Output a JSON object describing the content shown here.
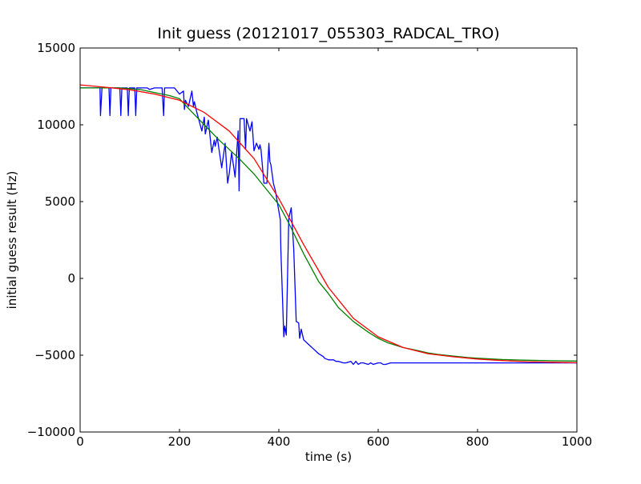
{
  "chart_data": {
    "type": "line",
    "title": "Init guess (20121017_055303_RADCAL_TRO)",
    "xlabel": "time (s)",
    "ylabel": "initial guess result (Hz)",
    "xlim": [
      0,
      1000
    ],
    "ylim": [
      -10000,
      15000
    ],
    "xticks": [
      0,
      200,
      400,
      600,
      800,
      1000
    ],
    "xtick_labels": [
      "0",
      "200",
      "400",
      "600",
      "800",
      "1000"
    ],
    "yticks": [
      -10000,
      -5000,
      0,
      5000,
      10000,
      15000
    ],
    "ytick_labels": [
      "−10000",
      "−5000",
      "0",
      "5000",
      "10000",
      "15000"
    ],
    "grid": false,
    "series": [
      {
        "color": "#0000ff",
        "x": [
          0,
          40,
          41,
          44,
          58,
          60,
          62,
          80,
          82,
          84,
          95,
          97,
          99,
          110,
          112,
          114,
          135,
          140,
          150,
          165,
          168,
          170,
          185,
          190,
          200,
          208,
          210,
          212,
          218,
          225,
          228,
          230,
          235,
          245,
          250,
          252,
          258,
          265,
          270,
          272,
          276,
          285,
          292,
          297,
          300,
          305,
          312,
          318,
          320,
          322,
          330,
          333,
          335,
          342,
          346,
          350,
          355,
          360,
          362,
          364,
          370,
          376,
          380,
          382,
          384,
          389,
          393,
          403,
          404,
          410,
          412,
          415,
          420,
          425,
          430,
          435,
          440,
          442,
          445,
          450,
          460,
          470,
          480,
          490,
          492,
          500,
          510,
          515,
          520,
          530,
          535,
          545,
          550,
          555,
          560,
          565,
          570,
          580,
          585,
          590,
          600,
          605,
          610,
          615,
          625,
          635,
          645,
          650,
          660,
          670,
          672,
          680,
          685,
          690,
          700,
          705,
          715,
          725,
          735,
          745,
          755,
          765,
          775,
          785,
          795,
          800,
          805,
          815,
          825,
          835,
          845,
          855,
          865,
          875,
          885,
          895,
          905,
          915,
          925,
          935,
          945,
          955,
          960,
          965,
          970,
          975,
          980,
          985,
          990,
          995,
          1000
        ],
        "y": [
          12400,
          12400,
          10600,
          12400,
          12400,
          10600,
          12400,
          12400,
          10600,
          12400,
          12400,
          10600,
          12400,
          12400,
          10600,
          12400,
          12400,
          12300,
          12400,
          12400,
          10600,
          12400,
          12400,
          12400,
          12000,
          12200,
          11000,
          11600,
          11200,
          12200,
          11200,
          11500,
          10800,
          9600,
          10500,
          9400,
          10300,
          8200,
          9000,
          8600,
          9200,
          7200,
          8800,
          6200,
          6800,
          8200,
          6600,
          9600,
          5700,
          10400,
          10400,
          8400,
          10400,
          9600,
          10200,
          8300,
          8800,
          8400,
          8700,
          8400,
          6200,
          6200,
          8800,
          7600,
          7400,
          6200,
          5700,
          3800,
          1900,
          -3800,
          -3100,
          -3700,
          3900,
          4600,
          1900,
          -2800,
          -2900,
          -3900,
          -3300,
          -4000,
          -4300,
          -4600,
          -4900,
          -5100,
          -5200,
          -5300,
          -5300,
          -5400,
          -5400,
          -5500,
          -5500,
          -5400,
          -5600,
          -5400,
          -5600,
          -5500,
          -5500,
          -5600,
          -5500,
          -5600,
          -5500,
          -5500,
          -5600,
          -5600,
          -5500,
          -5500,
          -5500,
          -5500,
          -5500,
          -5500,
          -5500,
          -5500,
          -5500,
          -5500,
          -5500,
          -5500,
          -5500,
          -5500,
          -5500,
          -5500,
          -5500,
          -5500,
          -5500,
          -5500,
          -5500,
          -5500,
          -5500,
          -5500,
          -5500,
          -5500,
          -5500,
          -5500,
          -5500,
          -5500,
          -5500,
          -5500,
          -5500,
          -5500,
          -5500,
          -5500,
          -5500,
          -5500,
          -5500,
          -5500,
          -5500,
          -5500,
          -5500,
          -5500,
          -5500,
          -5500,
          -5500
        ]
      },
      {
        "color": "#008000",
        "x": [
          0,
          40,
          80,
          120,
          150,
          180,
          200,
          220,
          250,
          280,
          300,
          320,
          350,
          380,
          400,
          420,
          450,
          480,
          500,
          520,
          550,
          580,
          600,
          620,
          650,
          680,
          700,
          720,
          750,
          780,
          800,
          850,
          900,
          950,
          1000
        ],
        "y": [
          12400,
          12400,
          12400,
          12300,
          12100,
          11900,
          11700,
          11000,
          10000,
          9000,
          8400,
          7800,
          6800,
          5600,
          4800,
          3600,
          1600,
          -200,
          -1000,
          -1900,
          -2800,
          -3500,
          -3900,
          -4200,
          -4500,
          -4700,
          -4850,
          -4950,
          -5050,
          -5150,
          -5200,
          -5280,
          -5330,
          -5360,
          -5380
        ]
      },
      {
        "color": "#ff0000",
        "x": [
          0,
          50,
          100,
          150,
          200,
          250,
          300,
          350,
          400,
          450,
          500,
          550,
          600,
          650,
          700,
          750,
          800,
          850,
          900,
          950,
          1000
        ],
        "y": [
          12600,
          12450,
          12280,
          12000,
          11600,
          10800,
          9600,
          7800,
          5200,
          2200,
          -600,
          -2600,
          -3800,
          -4500,
          -4900,
          -5100,
          -5250,
          -5350,
          -5420,
          -5460,
          -5490
        ]
      }
    ]
  }
}
